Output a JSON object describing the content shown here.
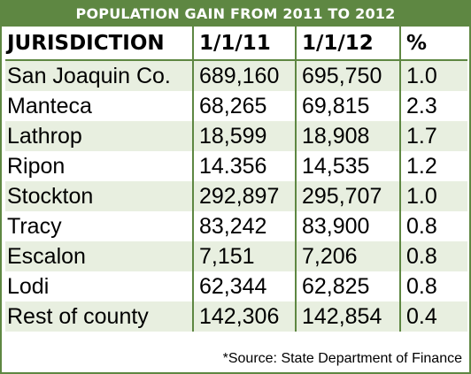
{
  "chart_data": {
    "type": "table",
    "title": "POPULATION GAIN FROM 2011 TO 2012",
    "columns": [
      "JURISDICTION",
      "1/1/11",
      "1/1/12",
      "%"
    ],
    "rows": [
      [
        "San Joaquin Co.",
        "689,160",
        "695,750",
        "1.0"
      ],
      [
        "Manteca",
        "68,265",
        "69,815",
        "2.3"
      ],
      [
        "Lathrop",
        "18,599",
        "18,908",
        "1.7"
      ],
      [
        "Ripon",
        "14.356",
        "14,535",
        "1.2"
      ],
      [
        "Stockton",
        "292,897",
        "295,707",
        "1.0"
      ],
      [
        "Tracy",
        "83,242",
        "83,900",
        "0.8"
      ],
      [
        "Escalon",
        "7,151",
        "7,206",
        "0.8"
      ],
      [
        "Lodi",
        "62,344",
        "62,825",
        "0.8"
      ],
      [
        "Rest of county",
        "142,306",
        "142,854",
        "0.4"
      ]
    ],
    "source": "*Source: State Department of Finance"
  },
  "colors": {
    "accent": "#5e8742",
    "stripe": "#e8efe0"
  }
}
